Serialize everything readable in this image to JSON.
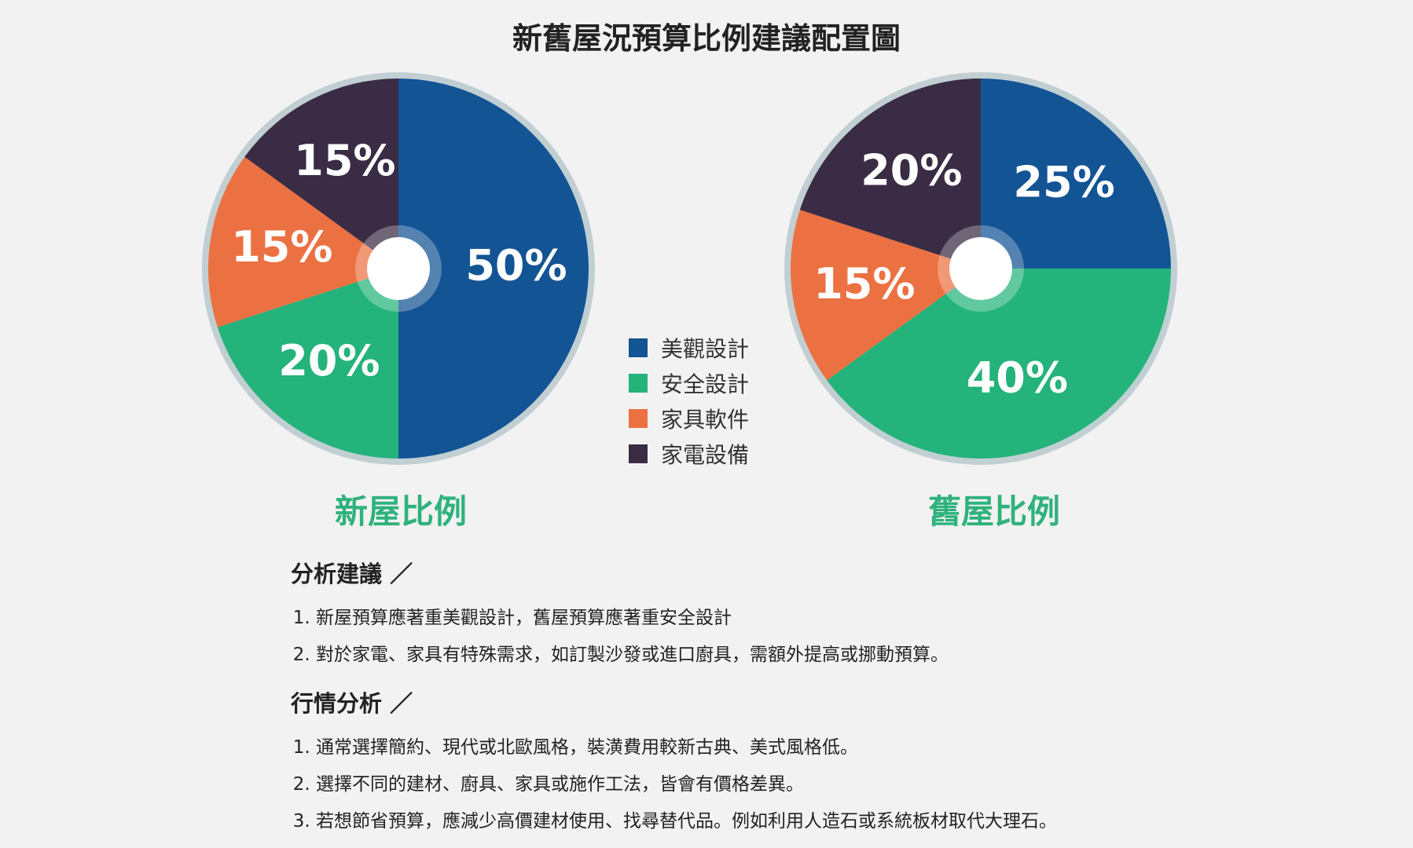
{
  "title": "新舊屋況預算比例建議配置圖",
  "colors": {
    "design": "#135495",
    "safety": "#24b37b",
    "furniture": "#ec7142",
    "appliance": "#3a2c44",
    "ring": "#c1cfd2",
    "caption": "#2fb27c"
  },
  "legend": [
    "美觀設計",
    "安全設計",
    "家具軟件",
    "家電設備"
  ],
  "chart_data": [
    {
      "type": "pie",
      "title": "新屋比例",
      "categories": [
        "美觀設計",
        "安全設計",
        "家具軟件",
        "家電設備"
      ],
      "values": [
        50,
        20,
        15,
        15
      ],
      "labels": [
        "50%",
        "20%",
        "15%",
        "15%"
      ]
    },
    {
      "type": "pie",
      "title": "舊屋比例",
      "categories": [
        "美觀設計",
        "安全設計",
        "家具軟件",
        "家電設備"
      ],
      "values": [
        25,
        40,
        15,
        20
      ],
      "labels": [
        "25%",
        "40%",
        "15%",
        "20%"
      ]
    }
  ],
  "analysis": {
    "heading": "分析建議 ／",
    "items": [
      "新屋預算應著重美觀設計，舊屋預算應著重安全設計",
      "對於家電、家具有特殊需求，如訂製沙發或進口廚具，需額外提高或挪動預算。"
    ]
  },
  "market": {
    "heading": "行情分析 ／",
    "items": [
      "通常選擇簡約、現代或北歐風格，裝潢費用較新古典、美式風格低。",
      "選擇不同的建材、廚具、家具或施作工法，皆會有價格差異。",
      "若想節省預算，應減少高價建材使用、找尋替代品。例如利用人造石或系統板材取代大理石。"
    ]
  }
}
